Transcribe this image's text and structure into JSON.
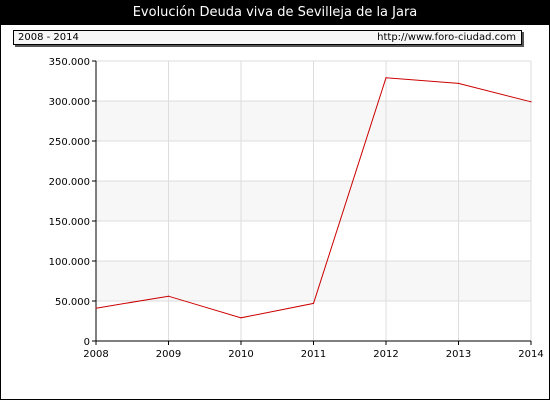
{
  "title": "Evolución Deuda viva de Sevilleja de la Jara",
  "info": {
    "period": "2008 - 2014",
    "url": "http://www.foro-ciudad.com"
  },
  "chart_data": {
    "type": "line",
    "title": "Evolución Deuda viva de Sevilleja de la Jara",
    "x": [
      "2008",
      "2009",
      "2010",
      "2011",
      "2012",
      "2013",
      "2014"
    ],
    "series": [
      {
        "color": "#cc0000",
        "values": [
          41000,
          56000,
          29000,
          47000,
          329000,
          322000,
          299000
        ]
      }
    ],
    "ylim": [
      0,
      350000
    ],
    "yticks": [
      0,
      50000,
      100000,
      150000,
      200000,
      250000,
      300000,
      350000
    ],
    "ytick_labels": [
      "0",
      "50.000",
      "100.000",
      "150.000",
      "200.000",
      "250.000",
      "300.000",
      "350.000"
    ],
    "grid": true,
    "colors": {
      "line": "#cc0000",
      "plot_background": "#f7f7f7",
      "band": "#ffffff",
      "grid": "#dddddd"
    }
  }
}
